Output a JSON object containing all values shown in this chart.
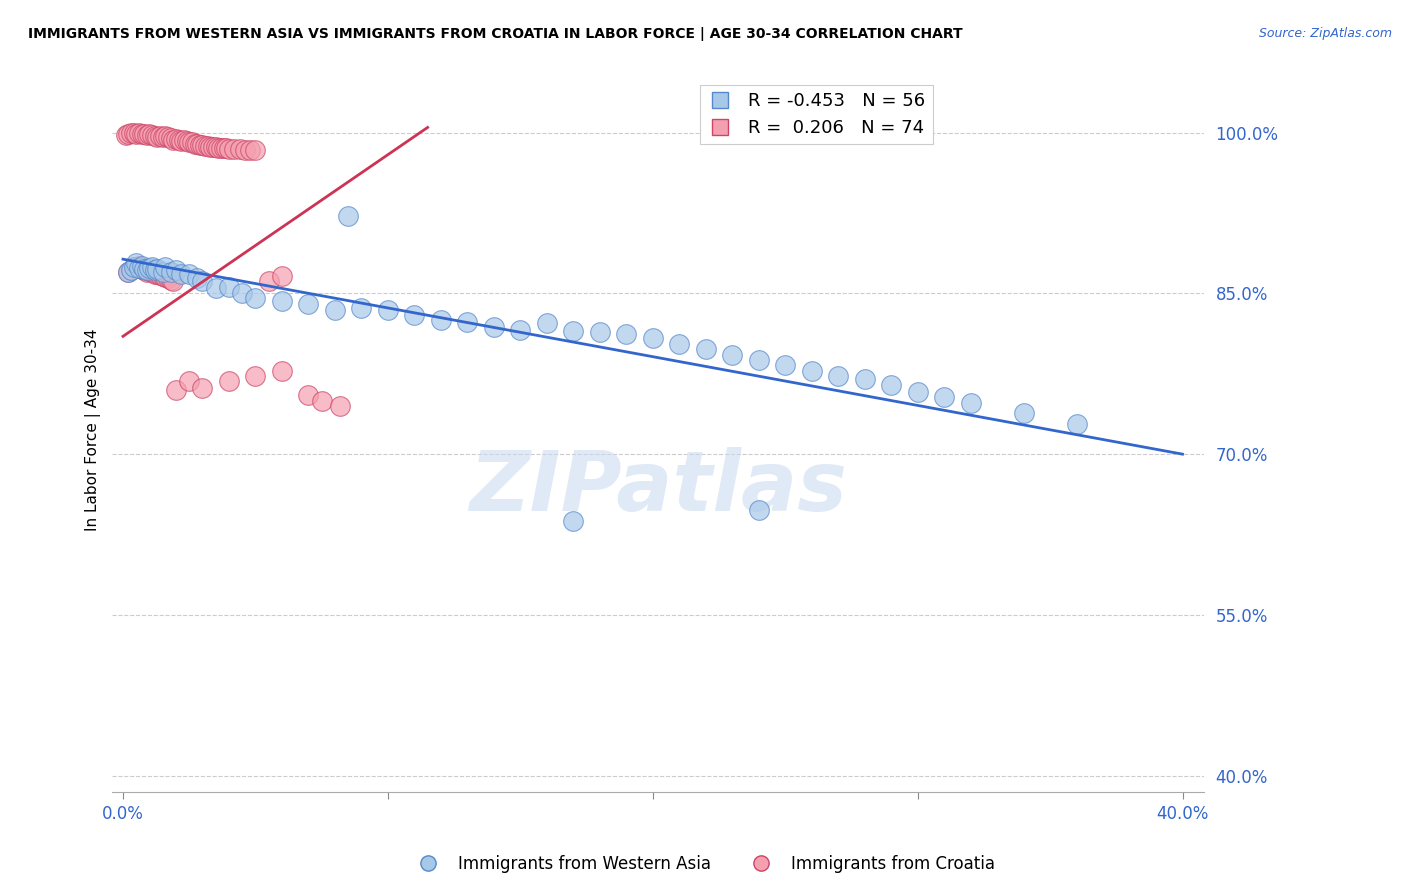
{
  "title": "IMMIGRANTS FROM WESTERN ASIA VS IMMIGRANTS FROM CROATIA IN LABOR FORCE | AGE 30-34 CORRELATION CHART",
  "source": "Source: ZipAtlas.com",
  "ylabel": "In Labor Force | Age 30-34",
  "xlim": [
    -0.004,
    0.408
  ],
  "ylim": [
    0.385,
    1.06
  ],
  "x_ticks": [
    0.0,
    0.1,
    0.2,
    0.3,
    0.4
  ],
  "x_tick_labels": [
    "0.0%",
    "",
    "",
    "",
    "40.0%"
  ],
  "y_ticks": [
    0.4,
    0.55,
    0.7,
    0.85,
    1.0
  ],
  "y_tick_labels": [
    "40.0%",
    "55.0%",
    "70.0%",
    "85.0%",
    "100.0%"
  ],
  "blue_color": "#a8c8e8",
  "pink_color": "#f4a0b0",
  "blue_edge_color": "#5588cc",
  "pink_edge_color": "#cc4466",
  "blue_line_color": "#3366cc",
  "pink_line_color": "#cc3355",
  "legend_label_blue": "Immigrants from Western Asia",
  "legend_label_pink": "Immigrants from Croatia",
  "watermark": "ZIPatlas",
  "blue_trend_x0": 0.0,
  "blue_trend_y0": 0.882,
  "blue_trend_x1": 0.4,
  "blue_trend_y1": 0.7,
  "pink_trend_x0": 0.0,
  "pink_trend_y0": 0.81,
  "pink_trend_x1": 0.115,
  "pink_trend_y1": 1.005,
  "blue_scatter_x": [
    0.002,
    0.003,
    0.004,
    0.005,
    0.006,
    0.007,
    0.008,
    0.009,
    0.01,
    0.011,
    0.012,
    0.013,
    0.015,
    0.016,
    0.018,
    0.02,
    0.022,
    0.025,
    0.028,
    0.03,
    0.035,
    0.04,
    0.045,
    0.05,
    0.06,
    0.07,
    0.08,
    0.085,
    0.09,
    0.1,
    0.11,
    0.12,
    0.13,
    0.14,
    0.15,
    0.16,
    0.17,
    0.18,
    0.19,
    0.2,
    0.21,
    0.22,
    0.23,
    0.24,
    0.25,
    0.26,
    0.27,
    0.28,
    0.29,
    0.3,
    0.31,
    0.32,
    0.34,
    0.36,
    0.17,
    0.24
  ],
  "blue_scatter_y": [
    0.87,
    0.872,
    0.875,
    0.878,
    0.874,
    0.876,
    0.873,
    0.872,
    0.874,
    0.875,
    0.872,
    0.873,
    0.87,
    0.875,
    0.87,
    0.872,
    0.868,
    0.868,
    0.864,
    0.862,
    0.855,
    0.856,
    0.85,
    0.846,
    0.843,
    0.84,
    0.835,
    0.922,
    0.836,
    0.835,
    0.83,
    0.825,
    0.823,
    0.819,
    0.816,
    0.822,
    0.815,
    0.814,
    0.812,
    0.808,
    0.803,
    0.798,
    0.793,
    0.788,
    0.783,
    0.778,
    0.773,
    0.77,
    0.765,
    0.758,
    0.753,
    0.748,
    0.738,
    0.728,
    0.638,
    0.648
  ],
  "pink_scatter_x": [
    0.001,
    0.002,
    0.003,
    0.004,
    0.005,
    0.006,
    0.007,
    0.008,
    0.009,
    0.01,
    0.011,
    0.012,
    0.013,
    0.014,
    0.015,
    0.016,
    0.017,
    0.018,
    0.019,
    0.02,
    0.021,
    0.022,
    0.023,
    0.024,
    0.025,
    0.026,
    0.027,
    0.028,
    0.029,
    0.03,
    0.031,
    0.032,
    0.033,
    0.034,
    0.035,
    0.036,
    0.037,
    0.038,
    0.039,
    0.04,
    0.042,
    0.044,
    0.046,
    0.048,
    0.05,
    0.055,
    0.06,
    0.002,
    0.003,
    0.004,
    0.005,
    0.006,
    0.007,
    0.008,
    0.009,
    0.01,
    0.011,
    0.012,
    0.013,
    0.014,
    0.015,
    0.016,
    0.017,
    0.018,
    0.019,
    0.02,
    0.025,
    0.03,
    0.04,
    0.05,
    0.06,
    0.07,
    0.075,
    0.082
  ],
  "pink_scatter_y": [
    0.998,
    0.999,
    1.0,
    1.0,
    0.999,
    1.0,
    0.999,
    0.999,
    0.998,
    0.999,
    0.998,
    0.997,
    0.996,
    0.997,
    0.996,
    0.997,
    0.996,
    0.995,
    0.993,
    0.994,
    0.993,
    0.992,
    0.993,
    0.992,
    0.991,
    0.991,
    0.99,
    0.99,
    0.989,
    0.989,
    0.988,
    0.988,
    0.987,
    0.987,
    0.987,
    0.986,
    0.986,
    0.986,
    0.986,
    0.985,
    0.985,
    0.985,
    0.984,
    0.984,
    0.984,
    0.862,
    0.866,
    0.87,
    0.872,
    0.875,
    0.874,
    0.876,
    0.873,
    0.872,
    0.87,
    0.871,
    0.87,
    0.868,
    0.868,
    0.867,
    0.866,
    0.865,
    0.864,
    0.863,
    0.862,
    0.76,
    0.768,
    0.762,
    0.768,
    0.773,
    0.778,
    0.755,
    0.75,
    0.745
  ]
}
